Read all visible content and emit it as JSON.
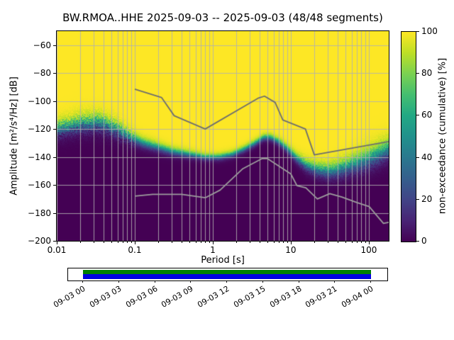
{
  "figure": {
    "title": "BW.RMOA..HHE   2025-09-03 -- 2025-09-03  (48/48 segments)",
    "station": "BW.RMOA..HHE",
    "date_range": "2025-09-03 -- 2025-09-03",
    "segments": "48/48"
  },
  "chart_data": {
    "type": "heatmap",
    "title": "BW.RMOA..HHE   2025-09-03 -- 2025-09-03  (48/48 segments)",
    "xlabel": "Period [s]",
    "ylabel": "Amplitude [m²/s⁴/Hz] [dB]",
    "x_scale": "log",
    "xlim": [
      0.01,
      180
    ],
    "ylim": [
      -200,
      -50
    ],
    "grid": true,
    "grid_color": "#b0b0b0",
    "x_ticks": [
      {
        "p": 0.01,
        "label": "0.01"
      },
      {
        "p": 0.1,
        "label": "0.1"
      },
      {
        "p": 1,
        "label": "1"
      },
      {
        "p": 10,
        "label": "10"
      },
      {
        "p": 100,
        "label": "100"
      }
    ],
    "y_ticks": [
      {
        "db": -60,
        "label": "−60"
      },
      {
        "db": -80,
        "label": "−80"
      },
      {
        "db": -100,
        "label": "−100"
      },
      {
        "db": -120,
        "label": "−120"
      },
      {
        "db": -140,
        "label": "−140"
      },
      {
        "db": -160,
        "label": "−160"
      },
      {
        "db": -180,
        "label": "−180"
      },
      {
        "db": -200,
        "label": "−200"
      }
    ],
    "colorbar": {
      "label": "non-exceedance (cumulative) [%]",
      "lim": [
        0,
        100
      ],
      "colormap": "viridis",
      "ticks": [
        {
          "v": 0,
          "label": "0"
        },
        {
          "v": 20,
          "label": "20"
        },
        {
          "v": 40,
          "label": "40"
        },
        {
          "v": 60,
          "label": "60"
        },
        {
          "v": 80,
          "label": "80"
        },
        {
          "v": 100,
          "label": "100"
        }
      ]
    },
    "viridis_stops": [
      [
        0.0,
        68,
        1,
        84
      ],
      [
        0.1,
        72,
        36,
        117
      ],
      [
        0.2,
        65,
        68,
        135
      ],
      [
        0.3,
        53,
        95,
        141
      ],
      [
        0.4,
        42,
        120,
        142
      ],
      [
        0.5,
        33,
        145,
        140
      ],
      [
        0.6,
        34,
        168,
        132
      ],
      [
        0.7,
        68,
        190,
        112
      ],
      [
        0.8,
        122,
        209,
        81
      ],
      [
        0.9,
        189,
        223,
        38
      ],
      [
        1.0,
        253,
        231,
        37
      ]
    ],
    "distribution": {
      "periods": [
        0.01,
        0.02,
        0.035,
        0.06,
        0.09,
        0.13,
        0.2,
        0.3,
        0.5,
        0.8,
        1.2,
        1.8,
        2.6,
        3.5,
        4.5,
        5.5,
        7,
        9,
        12,
        16,
        22,
        32,
        45,
        65,
        90,
        130,
        180
      ],
      "mode_db": [
        -120,
        -116,
        -115,
        -120,
        -126,
        -130,
        -133,
        -136,
        -138,
        -140,
        -140,
        -138,
        -134,
        -130,
        -126,
        -126,
        -129,
        -134,
        -141,
        -146,
        -149,
        -150,
        -148,
        -145,
        -142,
        -138,
        -134
      ],
      "width_db": [
        9,
        10,
        10,
        9,
        7,
        6,
        5.5,
        5,
        4.5,
        4,
        4,
        4,
        4,
        4,
        4,
        4,
        4.5,
        5,
        6,
        7,
        8,
        9,
        10,
        11,
        12,
        12,
        12
      ]
    },
    "noise_models": {
      "nhnm": [
        [
          0.1,
          -91.5
        ],
        [
          0.22,
          -97.4
        ],
        [
          0.32,
          -110.5
        ],
        [
          0.8,
          -120
        ],
        [
          3.8,
          -98
        ],
        [
          4.6,
          -96.5
        ],
        [
          6.3,
          -101
        ],
        [
          7.9,
          -113.5
        ],
        [
          15.4,
          -120
        ],
        [
          20,
          -138.5
        ],
        [
          180,
          -129
        ]
      ],
      "nlnm": [
        [
          0.1,
          -168
        ],
        [
          0.17,
          -166.7
        ],
        [
          0.4,
          -166.7
        ],
        [
          0.8,
          -169.2
        ],
        [
          1.24,
          -163.7
        ],
        [
          2.4,
          -148.6
        ],
        [
          4.3,
          -141.1
        ],
        [
          5,
          -141.1
        ],
        [
          6,
          -144
        ],
        [
          10,
          -152.1
        ],
        [
          12,
          -160.5
        ],
        [
          15.6,
          -162.1
        ],
        [
          21.9,
          -170
        ],
        [
          31.6,
          -166.2
        ],
        [
          45,
          -168.6
        ],
        [
          70,
          -172.6
        ],
        [
          101,
          -175.5
        ],
        [
          154,
          -187.5
        ],
        [
          180,
          -186.8
        ]
      ],
      "color_high": "#6e6e6e",
      "color_low": "#9d9d9d"
    }
  },
  "timeline": {
    "labels": [
      "09-03 00",
      "09-03 03",
      "09-03 06",
      "09-03 09",
      "09-03 12",
      "09-03 15",
      "09-03 18",
      "09-03 21",
      "09-04 00"
    ],
    "bar_top_color": "#008000",
    "bar_bottom_color": "#0000e0"
  }
}
